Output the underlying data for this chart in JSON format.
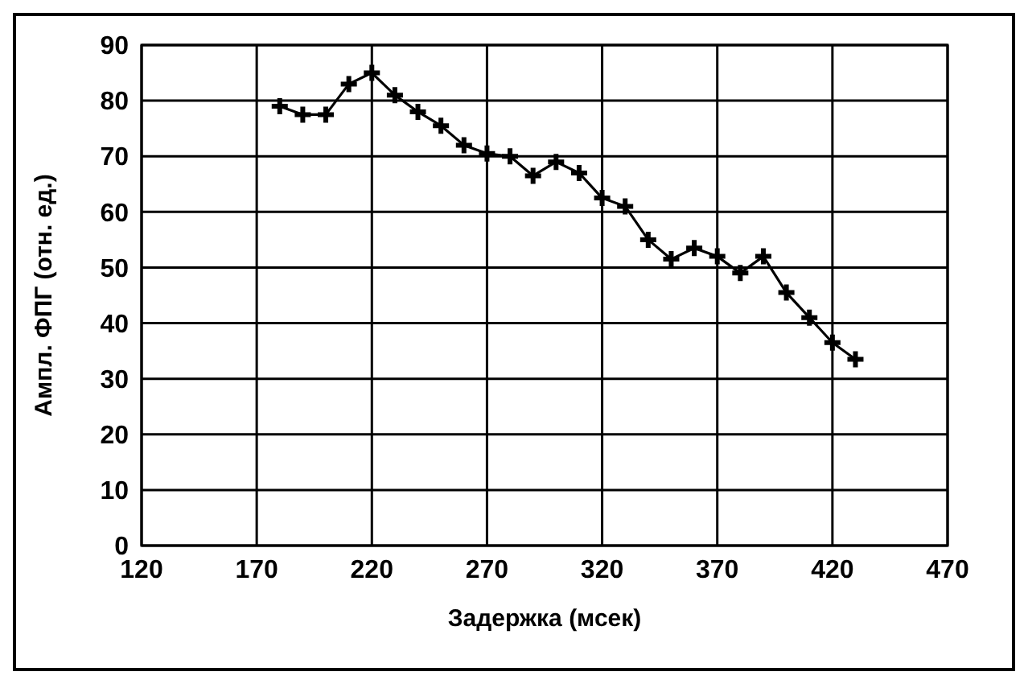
{
  "chart_data": {
    "type": "line",
    "xlabel": "Задержка (мсек)",
    "ylabel": "Ампл. ФПГ (отн. ед.)",
    "x": [
      180,
      190,
      200,
      210,
      220,
      230,
      240,
      250,
      260,
      270,
      280,
      290,
      300,
      310,
      320,
      330,
      340,
      350,
      360,
      370,
      380,
      390,
      400,
      410,
      420,
      430
    ],
    "series": [
      {
        "color": "#000000",
        "values": [
          79,
          77.5,
          77.5,
          83,
          85,
          81,
          78,
          75.5,
          72,
          70.5,
          70,
          66.5,
          69,
          67,
          62.5,
          61,
          55,
          51.5,
          53.5,
          52,
          49,
          52,
          45.5,
          41,
          36.5,
          33.5
        ]
      }
    ],
    "xlim": [
      120,
      470
    ],
    "xticks": [
      120,
      170,
      220,
      270,
      320,
      370,
      420,
      470
    ],
    "ylim": [
      0,
      90
    ],
    "yticks": [
      0,
      10,
      20,
      30,
      40,
      50,
      60,
      70,
      80,
      90
    ],
    "grid": true,
    "marker": "cross",
    "line_style": "solid"
  }
}
